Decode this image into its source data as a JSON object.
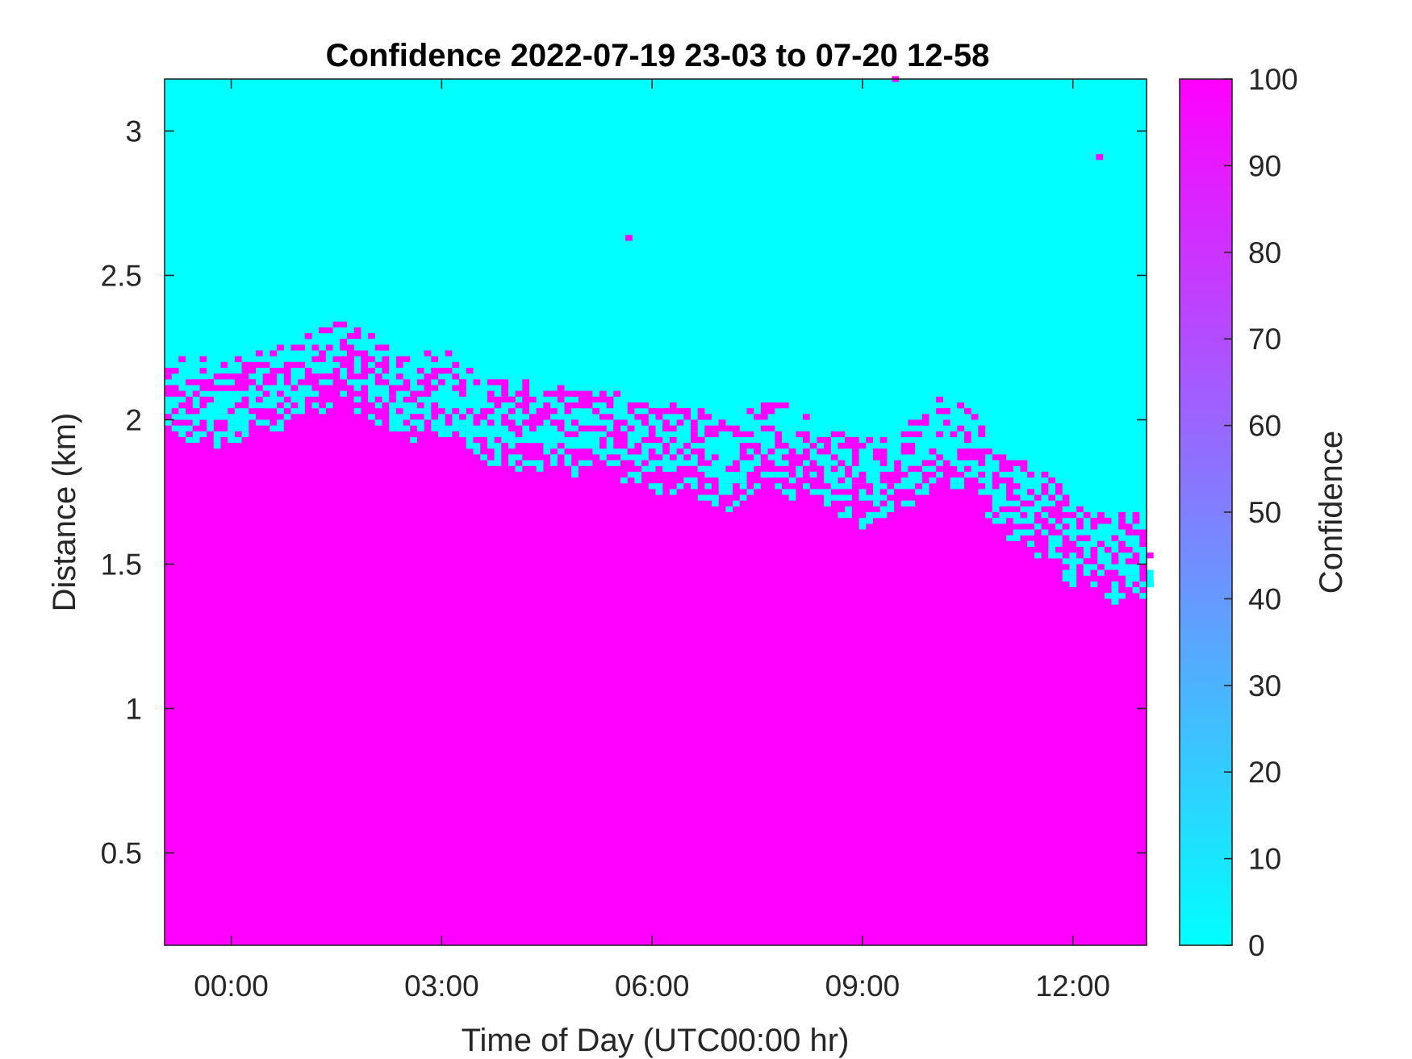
{
  "chart_data": {
    "type": "heatmap",
    "title": "Confidence 2022-07-19 23-03 to 07-20 12-58",
    "xlabel": "Time of Day (UTC00:00 hr)",
    "ylabel": "Distance (km)",
    "xlim_hours": [
      -0.95,
      13.05
    ],
    "ylim_km": [
      0.18,
      3.18
    ],
    "x_ticks": [
      {
        "value": 0,
        "label": "00:00"
      },
      {
        "value": 3,
        "label": "03:00"
      },
      {
        "value": 6,
        "label": "06:00"
      },
      {
        "value": 9,
        "label": "09:00"
      },
      {
        "value": 12,
        "label": "12:00"
      }
    ],
    "y_ticks": [
      {
        "value": 0.5,
        "label": "0.5"
      },
      {
        "value": 1,
        "label": "1"
      },
      {
        "value": 1.5,
        "label": "1.5"
      },
      {
        "value": 2,
        "label": "2"
      },
      {
        "value": 2.5,
        "label": "2.5"
      },
      {
        "value": 3,
        "label": "3"
      }
    ],
    "colorbar": {
      "label": "Confidence",
      "range": [
        0,
        100
      ],
      "ticks": [
        "0",
        "10",
        "20",
        "30",
        "40",
        "50",
        "60",
        "70",
        "80",
        "90",
        "100"
      ],
      "low_color": "#00ffff",
      "high_color": "#ff00ff"
    },
    "confidence_boundary_km": {
      "description_hours": [
        -0.95,
        -0.5,
        0,
        0.5,
        1,
        1.5,
        2,
        2.5,
        3,
        3.5,
        4,
        4.5,
        5,
        5.5,
        6,
        6.5,
        7,
        7.5,
        8,
        8.5,
        9,
        9.5,
        10,
        10.5,
        11,
        11.5,
        12,
        12.5,
        13.05
      ],
      "values": [
        2.02,
        2.0,
        2.02,
        2.05,
        2.1,
        2.14,
        2.08,
        2.02,
        2.04,
        1.94,
        1.92,
        1.93,
        1.9,
        1.88,
        1.84,
        1.84,
        1.78,
        1.86,
        1.83,
        1.78,
        1.72,
        1.74,
        1.88,
        1.84,
        1.68,
        1.62,
        1.5,
        1.45,
        1.48
      ]
    },
    "isolated_high_points": [
      {
        "x": 5.62,
        "y": 2.62
      },
      {
        "x": 9.42,
        "y": 3.17
      },
      {
        "x": 12.33,
        "y": 2.9
      }
    ]
  }
}
